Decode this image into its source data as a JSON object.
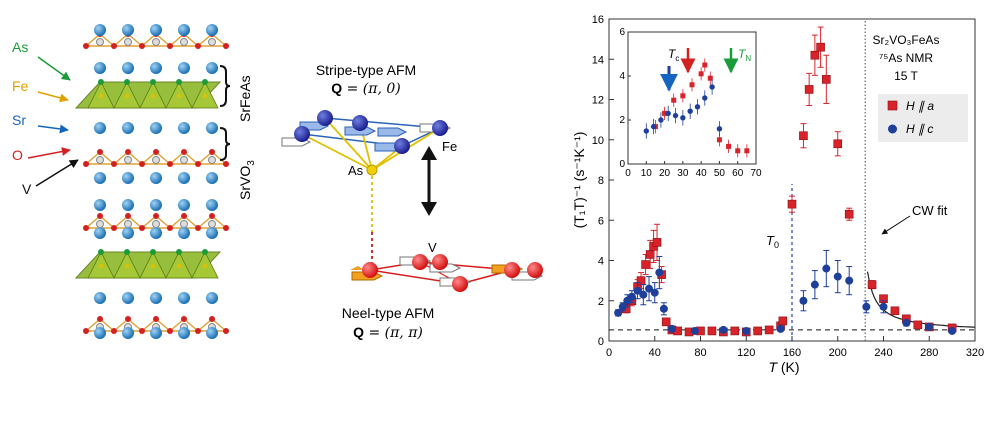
{
  "structure": {
    "labels": [
      {
        "text": "As",
        "color": "#1a9c3a"
      },
      {
        "text": "Fe",
        "color": "#e0a000"
      },
      {
        "text": "Sr",
        "color": "#1565c0"
      },
      {
        "text": "O",
        "color": "#d32020"
      },
      {
        "text": "V",
        "color": "#111111"
      }
    ],
    "layer_top": "SrFeAs",
    "layer_bottom_main": "SrVO",
    "layer_bottom_sub": "3"
  },
  "magnetic": {
    "stripe_title": "Stripe-type AFM",
    "stripe_q_bold": "Q",
    "stripe_q_value": " = (π, 0)",
    "fe_label": "Fe",
    "as_label": "As",
    "v_label": "V",
    "neel_title": "Neel-type AFM",
    "neel_q_bold": "Q",
    "neel_q_value": " = (π, π)"
  },
  "chart_data": {
    "type": "scatter",
    "xlabel_main": "T",
    "xlabel_unit": " (K)",
    "ylabel": "(T₁T)⁻¹ (s⁻¹K⁻¹)",
    "xlim": [
      0,
      320
    ],
    "ylim": [
      0,
      16
    ],
    "xticks": [
      0,
      40,
      80,
      120,
      160,
      200,
      240,
      280,
      320
    ],
    "yticks": [
      0,
      2,
      4,
      6,
      8,
      10,
      12,
      14,
      16
    ],
    "info": [
      "Sr₂VO₃FeAs",
      "⁷⁵As NMR",
      "15 T"
    ],
    "legend": [
      {
        "label": "H ∥ a",
        "color": "#d8232a",
        "marker": "square"
      },
      {
        "label": "H ∥ c",
        "color": "#1e3f9a",
        "marker": "circle"
      }
    ],
    "annotations": {
      "T0": "T",
      "T0_sub": "0",
      "cw": "CW fit"
    },
    "dashed_baseline": 0.55,
    "vline_T0": 160,
    "vline_dotted": 224,
    "series": [
      {
        "name": "H ∥ a",
        "color": "#d8232a",
        "marker": "square",
        "points": [
          [
            15,
            1.6
          ],
          [
            20,
            2.0
          ],
          [
            25,
            2.7
          ],
          [
            28,
            3.0
          ],
          [
            32,
            3.8
          ],
          [
            36,
            4.3
          ],
          [
            39,
            4.7
          ],
          [
            42,
            4.9
          ],
          [
            46,
            3.3
          ],
          [
            50,
            0.95
          ],
          [
            55,
            0.55
          ],
          [
            60,
            0.5
          ],
          [
            70,
            0.45
          ],
          [
            80,
            0.5
          ],
          [
            90,
            0.5
          ],
          [
            100,
            0.45
          ],
          [
            110,
            0.5
          ],
          [
            120,
            0.45
          ],
          [
            130,
            0.5
          ],
          [
            140,
            0.55
          ],
          [
            150,
            0.75
          ],
          [
            152,
            1.0
          ],
          [
            160,
            6.8
          ],
          [
            170,
            10.2
          ],
          [
            175,
            12.5
          ],
          [
            180,
            14.2
          ],
          [
            185,
            14.6
          ],
          [
            190,
            13.0
          ],
          [
            200,
            9.8
          ],
          [
            210,
            6.3
          ],
          [
            230,
            2.8
          ],
          [
            240,
            2.1
          ],
          [
            250,
            1.5
          ],
          [
            260,
            1.1
          ],
          [
            270,
            0.8
          ],
          [
            280,
            0.7
          ],
          [
            300,
            0.65
          ]
        ],
        "err": [
          0.2,
          0.25,
          0.35,
          0.4,
          0.5,
          0.7,
          0.8,
          0.9,
          0.4,
          0.1,
          0.05,
          0.05,
          0.05,
          0.05,
          0.05,
          0.05,
          0.05,
          0.05,
          0.05,
          0.05,
          0.1,
          0.15,
          0.4,
          0.6,
          0.8,
          1.0,
          1.0,
          1.2,
          0.6,
          0.3,
          0.2,
          0.15,
          0.1,
          0.1,
          0.05,
          0.05,
          0.05
        ]
      },
      {
        "name": "H ∥ c",
        "color": "#1e3f9a",
        "marker": "circle",
        "points": [
          [
            8,
            1.4
          ],
          [
            12,
            1.7
          ],
          [
            16,
            2.0
          ],
          [
            20,
            2.2
          ],
          [
            25,
            2.5
          ],
          [
            30,
            2.3
          ],
          [
            35,
            2.6
          ],
          [
            40,
            2.4
          ],
          [
            44,
            3.4
          ],
          [
            48,
            1.6
          ],
          [
            55,
            0.6
          ],
          [
            75,
            0.5
          ],
          [
            100,
            0.55
          ],
          [
            120,
            0.5
          ],
          [
            150,
            0.6
          ],
          [
            170,
            2.0
          ],
          [
            180,
            2.8
          ],
          [
            190,
            3.6
          ],
          [
            200,
            3.2
          ],
          [
            210,
            3.0
          ],
          [
            225,
            1.7
          ],
          [
            240,
            1.7
          ],
          [
            260,
            0.9
          ],
          [
            280,
            0.7
          ],
          [
            300,
            0.5
          ]
        ],
        "err": [
          0.15,
          0.2,
          0.3,
          0.3,
          0.4,
          0.5,
          0.6,
          0.5,
          0.8,
          0.3,
          0.1,
          0.05,
          0.05,
          0.05,
          0.1,
          0.5,
          0.7,
          0.9,
          0.8,
          0.7,
          0.3,
          0.3,
          0.15,
          0.1,
          0.05
        ]
      }
    ],
    "inset": {
      "xlim": [
        0,
        70
      ],
      "ylim": [
        0,
        16
      ],
      "xticks": [
        0,
        10,
        20,
        30,
        40,
        50,
        60,
        70
      ],
      "yticks": [
        0,
        2,
        4,
        6
      ],
      "ylim_inset": [
        0,
        6
      ],
      "tc_label": "T",
      "tc_sub": "c",
      "tn_label": "T",
      "tn_sub": "N",
      "red_series": [
        [
          15,
          1.7
        ],
        [
          20,
          2.3
        ],
        [
          25,
          2.9
        ],
        [
          30,
          3.1
        ],
        [
          35,
          3.6
        ],
        [
          40,
          4.1
        ],
        [
          42,
          4.5
        ],
        [
          45,
          3.9
        ],
        [
          50,
          1.1
        ],
        [
          55,
          0.8
        ],
        [
          60,
          0.6
        ],
        [
          65,
          0.6
        ]
      ],
      "blue_series": [
        [
          10,
          1.5
        ],
        [
          14,
          1.7
        ],
        [
          18,
          2.0
        ],
        [
          22,
          2.3
        ],
        [
          26,
          2.2
        ],
        [
          30,
          2.1
        ],
        [
          34,
          2.4
        ],
        [
          38,
          2.6
        ],
        [
          42,
          3.0
        ],
        [
          46,
          3.5
        ],
        [
          50,
          1.6
        ]
      ]
    }
  }
}
